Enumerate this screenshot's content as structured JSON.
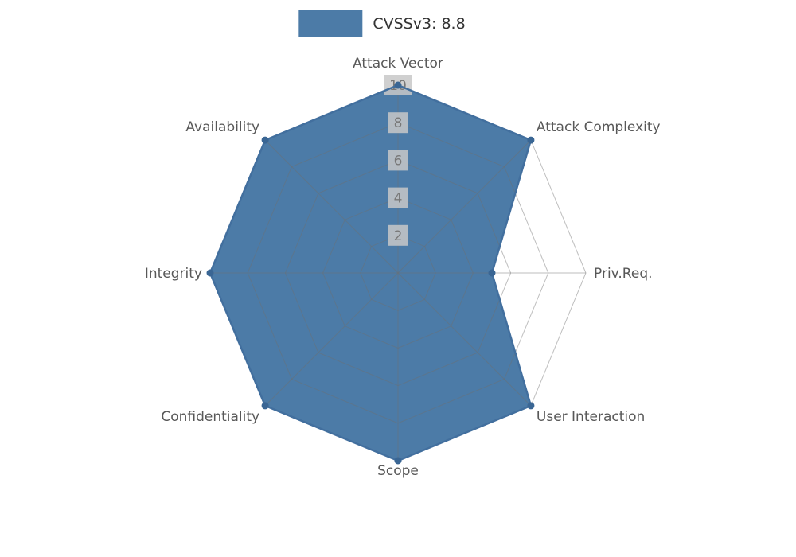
{
  "legend": {
    "label": "CVSSv3: 8.8",
    "swatch_color": "#4C7BA7"
  },
  "colors": {
    "background": "#ffffff",
    "fill": "#4C7BA7",
    "outline": "#426F9E",
    "dot": "#3A6694",
    "grid": "#6E6E6E",
    "grid_opacity": "0.45",
    "tick_bg": "#C8C8C8",
    "tick_bg_opacity": "0.85",
    "tick_text": "#787878",
    "axis_label": "#585858",
    "legend_text": "#333333"
  },
  "chart_data": {
    "type": "radar",
    "title": "CVSSv3: 8.8",
    "categories": [
      "Attack Vector",
      "Attack Complexity",
      "Priv.Req.",
      "User Interaction",
      "Scope",
      "Confidentiality",
      "Integrity",
      "Availability"
    ],
    "series": [
      {
        "name": "CVSSv3: 8.8",
        "values": [
          10,
          10,
          5,
          10,
          10,
          10,
          10,
          10
        ]
      }
    ],
    "ticks": [
      2,
      4,
      6,
      8,
      10
    ],
    "rmax": 10,
    "rmin": 0,
    "grid": true,
    "legend_position": "top-center"
  }
}
